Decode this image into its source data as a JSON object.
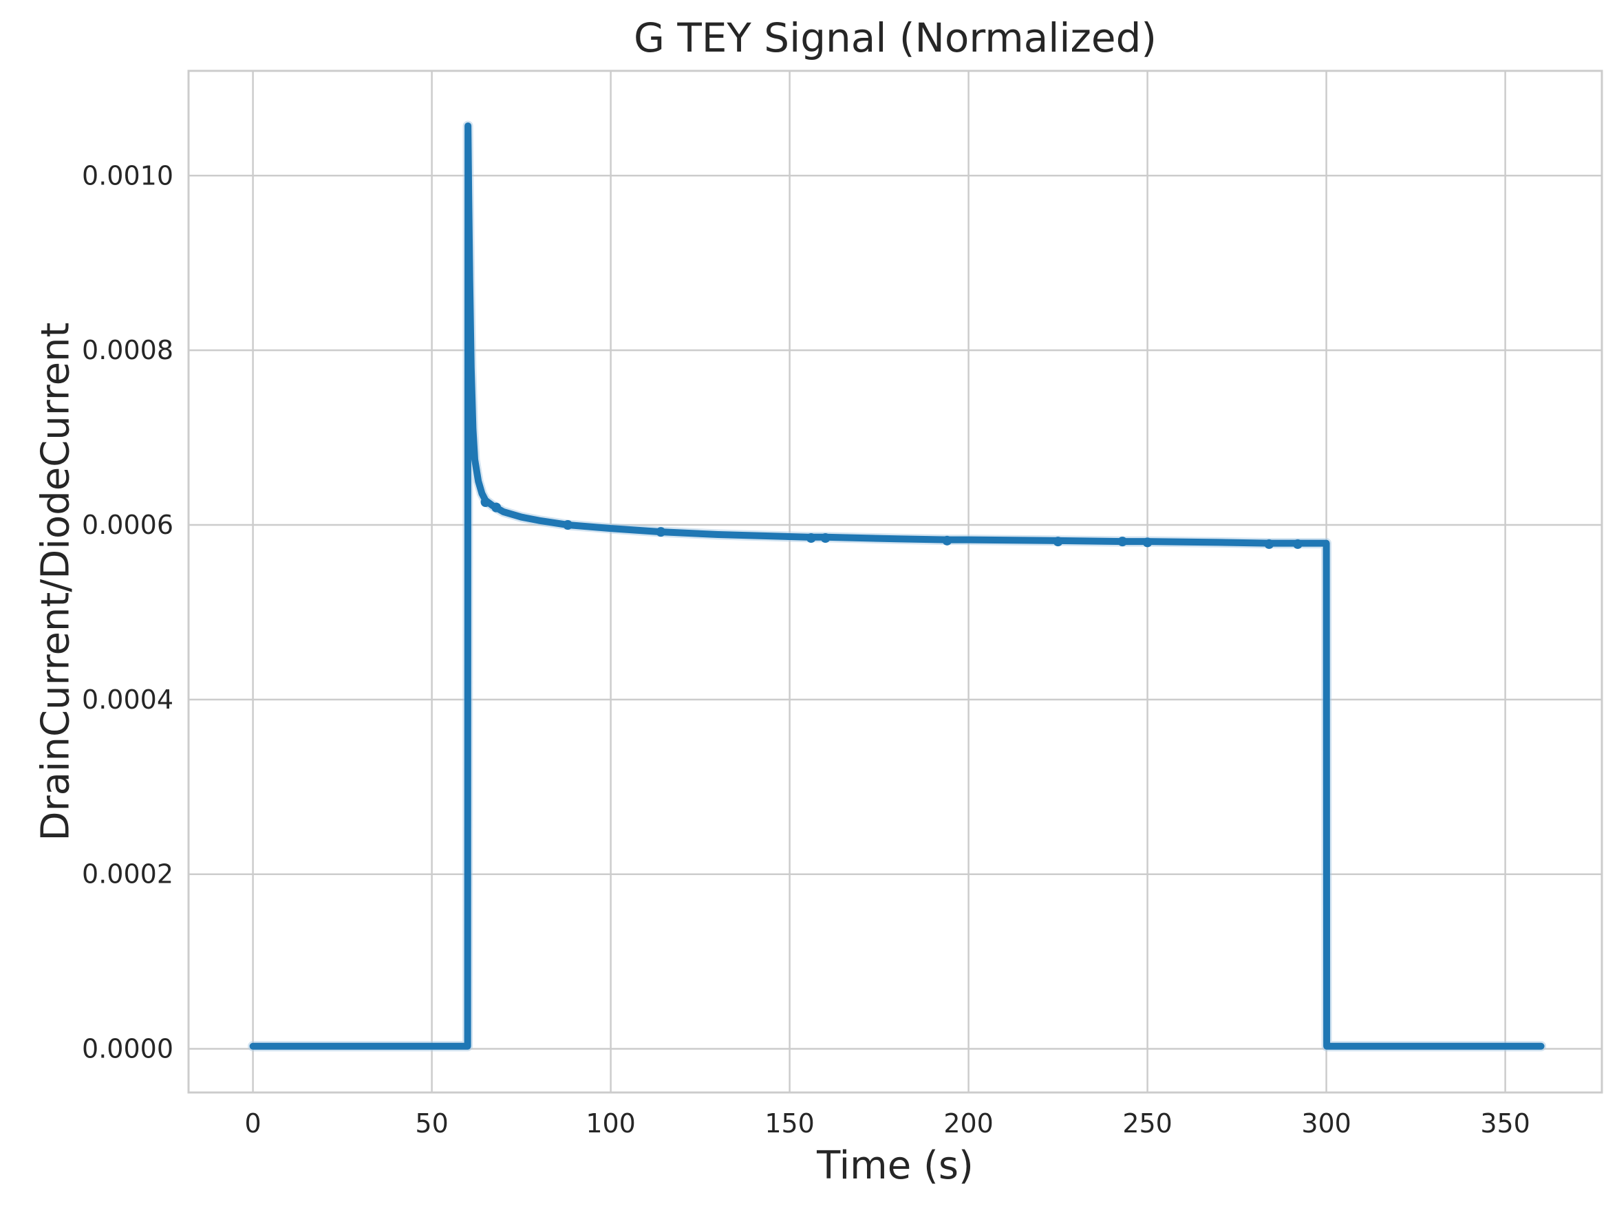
{
  "chart_data": {
    "type": "line",
    "title": "G TEY Signal (Normalized)",
    "xlabel": "Time (s)",
    "ylabel": "DrainCurrent/DiodeCurrent",
    "xlim": [
      -18,
      377
    ],
    "ylim": [
      -5e-05,
      0.00112
    ],
    "x_ticks": [
      0,
      50,
      100,
      150,
      200,
      250,
      300,
      350
    ],
    "x_tick_labels": [
      "0",
      "50",
      "100",
      "150",
      "200",
      "250",
      "300",
      "350"
    ],
    "y_ticks": [
      0.0,
      0.0002,
      0.0004,
      0.0006,
      0.0008,
      0.001
    ],
    "y_tick_labels": [
      "0.0000",
      "0.0002",
      "0.0004",
      "0.0006",
      "0.0008",
      "0.0010"
    ],
    "grid": true,
    "legend": "none",
    "colors": {
      "series": "#1f77b4",
      "grid": "#cccccc",
      "frame": "#cccccc",
      "background": "#ffffff"
    },
    "series": [
      {
        "x": [
          0,
          60,
          60.1,
          60.3,
          60.6,
          61,
          61.5,
          62,
          63,
          64,
          65,
          67,
          70,
          75,
          80,
          88,
          100,
          114,
          130,
          155,
          160,
          180,
          194,
          200,
          225,
          243,
          250,
          270,
          284,
          292,
          299.9,
          300,
          300.1,
          360
        ],
        "y": [
          3e-06,
          3e-06,
          0.001057,
          0.00098,
          0.00088,
          0.00078,
          0.00071,
          0.000675,
          0.00065,
          0.000636,
          0.000628,
          0.000622,
          0.000615,
          0.000609,
          0.000605,
          0.0006,
          0.000596,
          0.000592,
          0.000589,
          0.000586,
          0.000586,
          0.000584,
          0.000583,
          0.000583,
          0.000582,
          0.000581,
          0.000581,
          0.00058,
          0.000579,
          0.000579,
          0.000579,
          0.000579,
          3e-06,
          3e-06
        ]
      }
    ],
    "markers": [
      {
        "x": 65,
        "y": 0.000626
      },
      {
        "x": 68,
        "y": 0.00062
      },
      {
        "x": 88,
        "y": 0.0006
      },
      {
        "x": 114,
        "y": 0.000592
      },
      {
        "x": 156,
        "y": 0.000585
      },
      {
        "x": 160,
        "y": 0.000585
      },
      {
        "x": 194,
        "y": 0.000582
      },
      {
        "x": 225,
        "y": 0.000581
      },
      {
        "x": 243,
        "y": 0.000581
      },
      {
        "x": 250,
        "y": 0.00058
      },
      {
        "x": 284,
        "y": 0.000578
      },
      {
        "x": 292,
        "y": 0.000578
      }
    ]
  }
}
